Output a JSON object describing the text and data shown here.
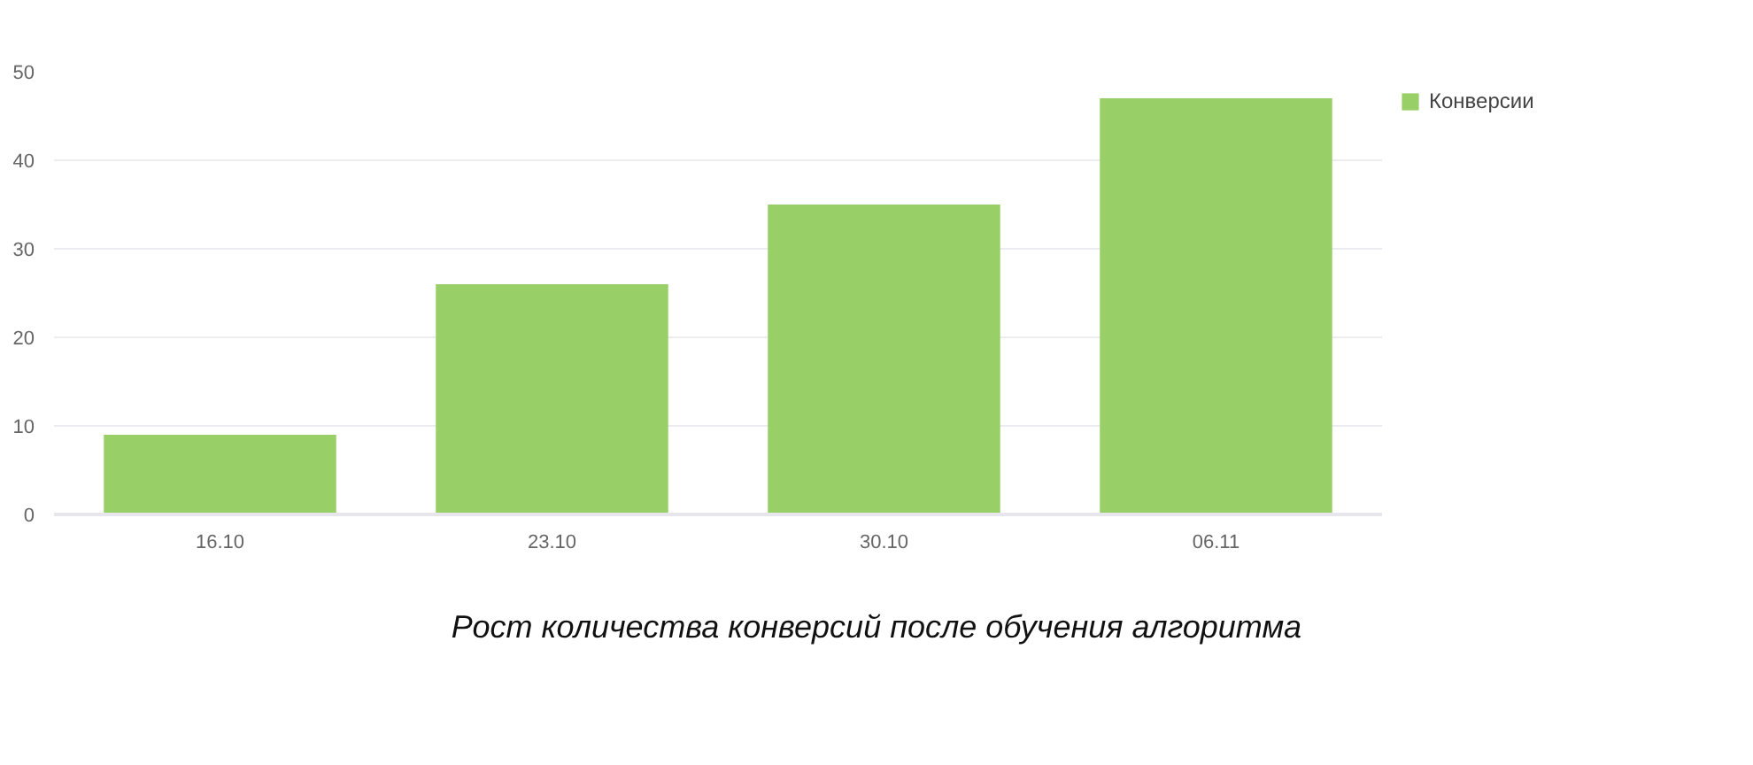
{
  "chart_data": {
    "type": "bar",
    "categories": [
      "16.10",
      "23.10",
      "30.10",
      "06.11"
    ],
    "series": [
      {
        "name": "Конверсии",
        "color": "#98cf66",
        "values": [
          9,
          26,
          35,
          47
        ]
      }
    ],
    "ylim": [
      0,
      50
    ],
    "yticks": [
      0,
      10,
      20,
      30,
      40,
      50
    ],
    "grid": "y",
    "legend": "top right",
    "annotations": [
      "Рост количества конверсий после обучения алгоритма"
    ]
  }
}
